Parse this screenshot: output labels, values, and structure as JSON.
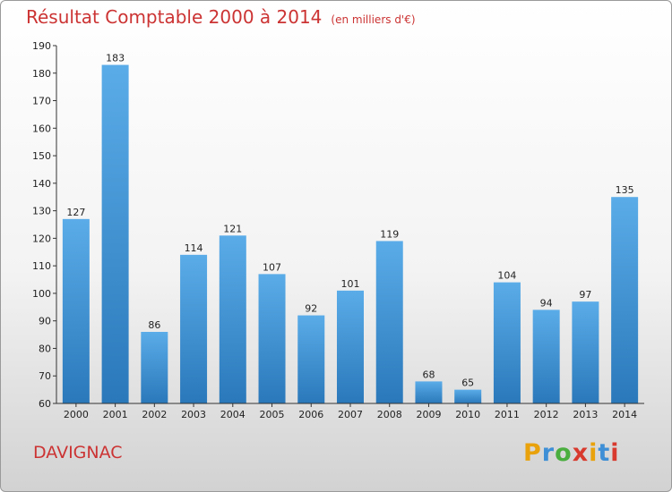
{
  "chart_data": {
    "type": "bar",
    "title": "Résultat Comptable 2000 à 2014",
    "unit_note": "(en milliers d'€)",
    "categories": [
      "2000",
      "2001",
      "2002",
      "2003",
      "2004",
      "2005",
      "2006",
      "2007",
      "2008",
      "2009",
      "2010",
      "2011",
      "2012",
      "2013",
      "2014"
    ],
    "values": [
      127,
      183,
      86,
      114,
      121,
      107,
      92,
      101,
      119,
      68,
      65,
      104,
      94,
      97,
      135
    ],
    "ylim": [
      60,
      190
    ],
    "yticks": [
      60,
      70,
      80,
      90,
      100,
      110,
      120,
      130,
      140,
      150,
      160,
      170,
      180,
      190
    ],
    "xlabel": "",
    "ylabel": "",
    "grid": false,
    "bar_color": "#3a8fd4"
  },
  "location": "DAVIGNAC",
  "brand": {
    "letters": [
      "P",
      "r",
      "o",
      "x",
      "i",
      "t",
      "i"
    ],
    "colors": [
      "#e9a20c",
      "#3e8fd6",
      "#4aae3f",
      "#d83a2e",
      "#e9a20c",
      "#3e8fd6",
      "#d83a2e"
    ]
  }
}
